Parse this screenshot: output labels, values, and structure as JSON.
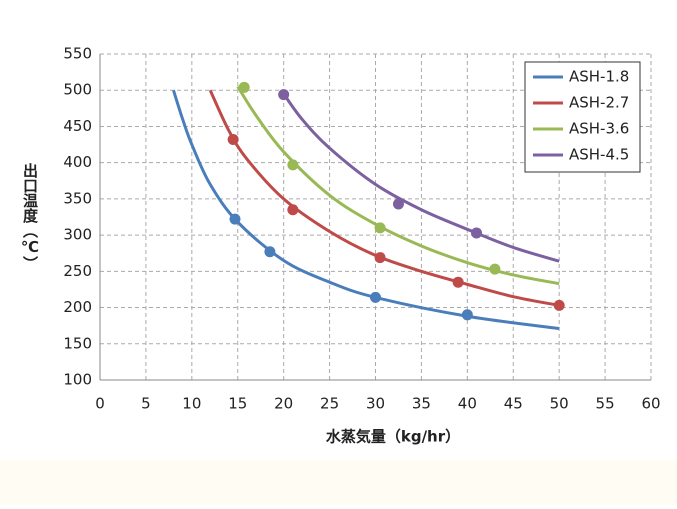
{
  "chart_data": {
    "type": "line",
    "x_label": "水蒸気量（kg/hr）",
    "y_label": "出口温度（℃）",
    "xlim": [
      0,
      60
    ],
    "xticks": [
      0,
      5,
      10,
      15,
      20,
      25,
      30,
      35,
      40,
      45,
      50,
      55,
      60
    ],
    "ylim": [
      100,
      550
    ],
    "yticks": [
      100,
      150,
      200,
      250,
      300,
      350,
      400,
      450,
      500,
      550
    ],
    "grid": true,
    "legend": "top-right",
    "series": [
      {
        "name": "ASH-1.8",
        "color": "#4a7ebb",
        "x": [
          14.7,
          18.5,
          30,
          40
        ],
        "values": [
          322,
          277,
          214,
          190
        ],
        "line": {
          "x": [
            8,
            9,
            10,
            12,
            15,
            20,
            25,
            30,
            40,
            50
          ],
          "values": [
            500,
            460,
            425,
            370,
            318,
            265,
            235,
            214,
            188,
            171
          ]
        }
      },
      {
        "name": "ASH-2.7",
        "color": "#be4b48",
        "x": [
          14.5,
          21,
          30.5,
          39,
          50
        ],
        "values": [
          432,
          335,
          269,
          235,
          203
        ],
        "line": {
          "x": [
            12,
            14,
            16,
            20,
            25,
            30,
            35,
            40,
            45,
            50
          ],
          "values": [
            500,
            445,
            405,
            350,
            305,
            272,
            250,
            232,
            215,
            203
          ]
        }
      },
      {
        "name": "ASH-3.6",
        "color": "#98b954",
        "x": [
          15.7,
          21,
          30.5,
          43
        ],
        "values": [
          504,
          397,
          310,
          253
        ],
        "line": {
          "x": [
            15,
            17,
            20,
            25,
            30,
            35,
            40,
            45,
            50
          ],
          "values": [
            505,
            465,
            415,
            355,
            315,
            285,
            262,
            245,
            233
          ]
        }
      },
      {
        "name": "ASH-4.5",
        "color": "#7d60a0",
        "x": [
          20,
          32.5,
          41
        ],
        "values": [
          494,
          343,
          303
        ],
        "line": {
          "x": [
            20,
            22,
            25,
            30,
            35,
            40,
            45,
            50
          ],
          "values": [
            495,
            460,
            420,
            370,
            335,
            308,
            283,
            264
          ]
        }
      }
    ]
  }
}
